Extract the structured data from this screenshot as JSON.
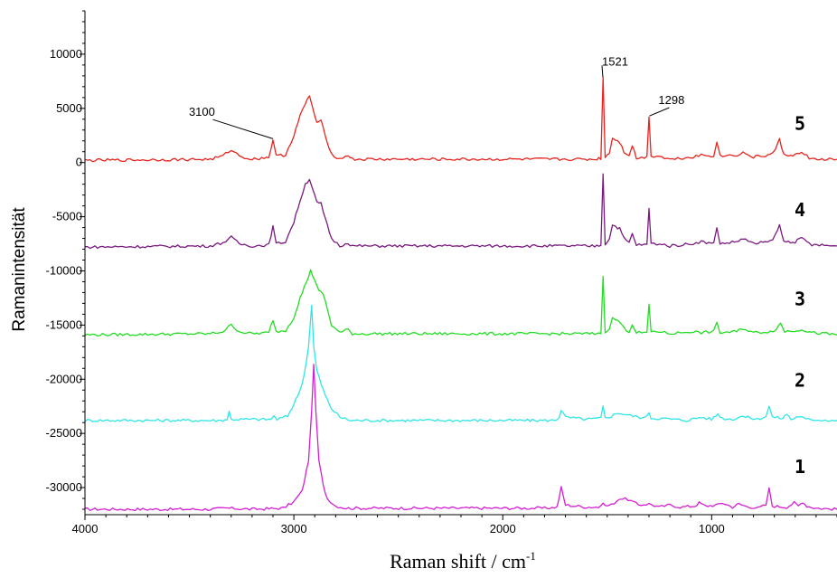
{
  "chart_data": {
    "type": "line",
    "title": "",
    "xlabel": "Raman shift / cm",
    "xlabel_superscript": "-1",
    "ylabel": "Ramanintensität",
    "xlim": [
      4000,
      400
    ],
    "ylim": [
      -32500,
      14000
    ],
    "x_reversed": true,
    "grid": false,
    "legend": "none",
    "x_ticks": [
      {
        "value": 4000,
        "label": "4000"
      },
      {
        "value": 3000,
        "label": "3000"
      },
      {
        "value": 2000,
        "label": "2000"
      },
      {
        "value": 1000,
        "label": "1000"
      }
    ],
    "y_ticks": [
      {
        "value": 10000,
        "label": "10000"
      },
      {
        "value": 5000,
        "label": "5000"
      },
      {
        "value": 0,
        "label": "0"
      },
      {
        "value": -5000,
        "label": "-5000"
      },
      {
        "value": -10000,
        "label": "-10000"
      },
      {
        "value": -15000,
        "label": "-15000"
      },
      {
        "value": -20000,
        "label": "-20000"
      },
      {
        "value": -25000,
        "label": "-25000"
      },
      {
        "value": -30000,
        "label": "-30000"
      }
    ],
    "series": [
      {
        "label": "1",
        "color": "#d41ed4",
        "label_y": -28000,
        "points": [
          [
            4000,
            -32000
          ],
          [
            3400,
            -32000
          ],
          [
            3320,
            -31900
          ],
          [
            3200,
            -32000
          ],
          [
            3050,
            -31900
          ],
          [
            3000,
            -31300
          ],
          [
            2960,
            -30300
          ],
          [
            2930,
            -27500
          ],
          [
            2915,
            -23000
          ],
          [
            2905,
            -18500
          ],
          [
            2895,
            -23000
          ],
          [
            2880,
            -27500
          ],
          [
            2860,
            -29800
          ],
          [
            2840,
            -31000
          ],
          [
            2800,
            -31700
          ],
          [
            2750,
            -31900
          ],
          [
            1800,
            -31900
          ],
          [
            1740,
            -31800
          ],
          [
            1720,
            -30000
          ],
          [
            1700,
            -31600
          ],
          [
            1600,
            -31800
          ],
          [
            1530,
            -31800
          ],
          [
            1520,
            -31300
          ],
          [
            1510,
            -31700
          ],
          [
            1480,
            -31600
          ],
          [
            1440,
            -31000
          ],
          [
            1400,
            -31100
          ],
          [
            1350,
            -31600
          ],
          [
            1300,
            -31500
          ],
          [
            1250,
            -31800
          ],
          [
            1200,
            -31600
          ],
          [
            1150,
            -31800
          ],
          [
            1080,
            -31700
          ],
          [
            1060,
            -31400
          ],
          [
            1030,
            -31700
          ],
          [
            970,
            -31600
          ],
          [
            950,
            -31400
          ],
          [
            900,
            -31800
          ],
          [
            870,
            -31500
          ],
          [
            840,
            -31700
          ],
          [
            780,
            -31900
          ],
          [
            740,
            -31600
          ],
          [
            725,
            -30100
          ],
          [
            710,
            -31700
          ],
          [
            640,
            -31800
          ],
          [
            605,
            -31400
          ],
          [
            585,
            -31700
          ],
          [
            565,
            -31300
          ],
          [
            545,
            -31700
          ],
          [
            500,
            -31900
          ],
          [
            400,
            -32000
          ]
        ]
      },
      {
        "label": "2",
        "color": "#2ee6e6",
        "label_y": -20000,
        "points": [
          [
            4000,
            -23800
          ],
          [
            3350,
            -23800
          ],
          [
            3320,
            -23700
          ],
          [
            3310,
            -23000
          ],
          [
            3300,
            -23700
          ],
          [
            3110,
            -23700
          ],
          [
            3095,
            -23400
          ],
          [
            3080,
            -23700
          ],
          [
            3030,
            -23400
          ],
          [
            3000,
            -22300
          ],
          [
            2970,
            -21000
          ],
          [
            2950,
            -19500
          ],
          [
            2930,
            -17000
          ],
          [
            2915,
            -13200
          ],
          [
            2905,
            -17000
          ],
          [
            2890,
            -19200
          ],
          [
            2870,
            -20400
          ],
          [
            2850,
            -21500
          ],
          [
            2820,
            -22700
          ],
          [
            2780,
            -23500
          ],
          [
            2730,
            -23800
          ],
          [
            1750,
            -23800
          ],
          [
            1730,
            -23500
          ],
          [
            1720,
            -22800
          ],
          [
            1700,
            -23500
          ],
          [
            1600,
            -23700
          ],
          [
            1530,
            -23600
          ],
          [
            1520,
            -22500
          ],
          [
            1510,
            -23600
          ],
          [
            1480,
            -23400
          ],
          [
            1450,
            -23100
          ],
          [
            1400,
            -23300
          ],
          [
            1320,
            -23600
          ],
          [
            1300,
            -23000
          ],
          [
            1290,
            -23600
          ],
          [
            1250,
            -23600
          ],
          [
            1120,
            -23800
          ],
          [
            1050,
            -23500
          ],
          [
            1000,
            -23700
          ],
          [
            970,
            -23200
          ],
          [
            950,
            -23600
          ],
          [
            900,
            -23700
          ],
          [
            860,
            -23400
          ],
          [
            780,
            -23700
          ],
          [
            740,
            -23400
          ],
          [
            725,
            -22500
          ],
          [
            710,
            -23500
          ],
          [
            660,
            -23600
          ],
          [
            640,
            -23200
          ],
          [
            620,
            -23700
          ],
          [
            580,
            -23400
          ],
          [
            550,
            -23700
          ],
          [
            400,
            -23800
          ]
        ]
      },
      {
        "label": "3",
        "color": "#22dd22",
        "label_y": -12500,
        "points": [
          [
            4000,
            -15900
          ],
          [
            3400,
            -15800
          ],
          [
            3340,
            -15600
          ],
          [
            3300,
            -15000
          ],
          [
            3260,
            -15600
          ],
          [
            3200,
            -15800
          ],
          [
            3120,
            -15700
          ],
          [
            3100,
            -14500
          ],
          [
            3085,
            -15600
          ],
          [
            3040,
            -15500
          ],
          [
            3000,
            -14300
          ],
          [
            2970,
            -12500
          ],
          [
            2940,
            -11000
          ],
          [
            2920,
            -10000
          ],
          [
            2900,
            -10800
          ],
          [
            2880,
            -11900
          ],
          [
            2860,
            -12100
          ],
          [
            2840,
            -13500
          ],
          [
            2820,
            -15000
          ],
          [
            2780,
            -15700
          ],
          [
            2740,
            -15400
          ],
          [
            2720,
            -15800
          ],
          [
            1560,
            -15800
          ],
          [
            1530,
            -15700
          ],
          [
            1520,
            -10600
          ],
          [
            1510,
            -15600
          ],
          [
            1490,
            -15300
          ],
          [
            1475,
            -14400
          ],
          [
            1460,
            -14500
          ],
          [
            1440,
            -14700
          ],
          [
            1420,
            -15300
          ],
          [
            1395,
            -15600
          ],
          [
            1380,
            -14900
          ],
          [
            1360,
            -15700
          ],
          [
            1310,
            -15700
          ],
          [
            1300,
            -13200
          ],
          [
            1290,
            -15600
          ],
          [
            1250,
            -15600
          ],
          [
            1200,
            -15800
          ],
          [
            1150,
            -15700
          ],
          [
            1100,
            -15600
          ],
          [
            1050,
            -15700
          ],
          [
            990,
            -15600
          ],
          [
            975,
            -14800
          ],
          [
            960,
            -15700
          ],
          [
            880,
            -15600
          ],
          [
            850,
            -15300
          ],
          [
            800,
            -15700
          ],
          [
            720,
            -15600
          ],
          [
            690,
            -15400
          ],
          [
            670,
            -14800
          ],
          [
            650,
            -15600
          ],
          [
            600,
            -15500
          ],
          [
            570,
            -15400
          ],
          [
            520,
            -15700
          ],
          [
            400,
            -15900
          ]
        ]
      },
      {
        "label": "4",
        "color": "#7a1a80",
        "label_y": -4300,
        "points": [
          [
            4000,
            -7800
          ],
          [
            3400,
            -7700
          ],
          [
            3340,
            -7400
          ],
          [
            3300,
            -6900
          ],
          [
            3260,
            -7500
          ],
          [
            3200,
            -7700
          ],
          [
            3120,
            -7600
          ],
          [
            3100,
            -5900
          ],
          [
            3085,
            -7500
          ],
          [
            3040,
            -7300
          ],
          [
            3000,
            -5500
          ],
          [
            2970,
            -3500
          ],
          [
            2945,
            -2000
          ],
          [
            2925,
            -1500
          ],
          [
            2910,
            -2400
          ],
          [
            2890,
            -3700
          ],
          [
            2870,
            -3800
          ],
          [
            2850,
            -5200
          ],
          [
            2820,
            -7000
          ],
          [
            2780,
            -7700
          ],
          [
            2740,
            -7400
          ],
          [
            2720,
            -7700
          ],
          [
            1560,
            -7700
          ],
          [
            1530,
            -7600
          ],
          [
            1520,
            -1000
          ],
          [
            1510,
            -7500
          ],
          [
            1490,
            -7100
          ],
          [
            1475,
            -5700
          ],
          [
            1460,
            -5900
          ],
          [
            1440,
            -6100
          ],
          [
            1420,
            -7000
          ],
          [
            1395,
            -7400
          ],
          [
            1380,
            -6600
          ],
          [
            1360,
            -7600
          ],
          [
            1310,
            -7600
          ],
          [
            1300,
            -4200
          ],
          [
            1290,
            -7500
          ],
          [
            1250,
            -7500
          ],
          [
            1200,
            -7700
          ],
          [
            1100,
            -7500
          ],
          [
            1050,
            -7300
          ],
          [
            990,
            -7500
          ],
          [
            975,
            -5900
          ],
          [
            960,
            -7500
          ],
          [
            880,
            -7300
          ],
          [
            850,
            -7000
          ],
          [
            800,
            -7500
          ],
          [
            720,
            -7300
          ],
          [
            695,
            -6700
          ],
          [
            675,
            -5800
          ],
          [
            655,
            -7300
          ],
          [
            600,
            -7300
          ],
          [
            570,
            -7000
          ],
          [
            520,
            -7600
          ],
          [
            400,
            -7700
          ]
        ]
      },
      {
        "label": "5",
        "color": "#e8241f",
        "label_y": 3700,
        "points": [
          [
            4000,
            200
          ],
          [
            3400,
            300
          ],
          [
            3340,
            600
          ],
          [
            3300,
            1200
          ],
          [
            3260,
            600
          ],
          [
            3200,
            300
          ],
          [
            3120,
            500
          ],
          [
            3100,
            2100
          ],
          [
            3085,
            600
          ],
          [
            3040,
            700
          ],
          [
            3000,
            2500
          ],
          [
            2970,
            4300
          ],
          [
            2945,
            5400
          ],
          [
            2925,
            6200
          ],
          [
            2910,
            5000
          ],
          [
            2890,
            3700
          ],
          [
            2870,
            3800
          ],
          [
            2850,
            2500
          ],
          [
            2820,
            800
          ],
          [
            2780,
            300
          ],
          [
            2740,
            700
          ],
          [
            2720,
            300
          ],
          [
            1560,
            300
          ],
          [
            1530,
            400
          ],
          [
            1520,
            7900
          ],
          [
            1510,
            500
          ],
          [
            1490,
            900
          ],
          [
            1475,
            2300
          ],
          [
            1460,
            2100
          ],
          [
            1440,
            1900
          ],
          [
            1420,
            1000
          ],
          [
            1395,
            700
          ],
          [
            1380,
            1600
          ],
          [
            1360,
            400
          ],
          [
            1310,
            500
          ],
          [
            1300,
            4300
          ],
          [
            1290,
            600
          ],
          [
            1250,
            600
          ],
          [
            1200,
            300
          ],
          [
            1100,
            500
          ],
          [
            1050,
            700
          ],
          [
            990,
            600
          ],
          [
            975,
            2000
          ],
          [
            960,
            600
          ],
          [
            880,
            700
          ],
          [
            850,
            900
          ],
          [
            800,
            500
          ],
          [
            720,
            700
          ],
          [
            695,
            1200
          ],
          [
            675,
            2100
          ],
          [
            655,
            700
          ],
          [
            600,
            700
          ],
          [
            570,
            900
          ],
          [
            520,
            300
          ],
          [
            400,
            300
          ]
        ]
      }
    ],
    "annotations": [
      {
        "label": "3100",
        "target_x": 3100,
        "target_y": 2200,
        "text_x": 3440,
        "text_y": 4300
      },
      {
        "label": "1521",
        "target_x": 1521,
        "target_y": 7900,
        "text_x": 1525,
        "text_y": 8300
      },
      {
        "label": "1298",
        "target_x": 1298,
        "target_y": 4300,
        "text_x": 1255,
        "text_y": 5400
      }
    ]
  }
}
